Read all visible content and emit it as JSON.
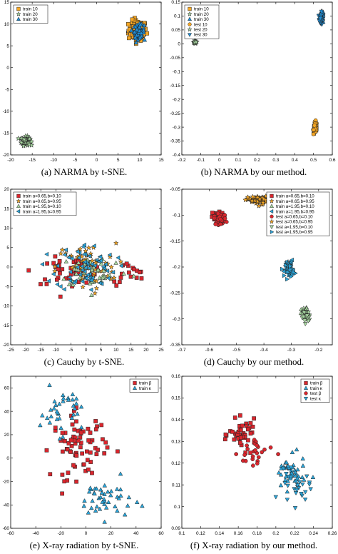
{
  "colors": {
    "orange": "#f5a623",
    "blue": "#1f8fd8",
    "green": "#a7d6a0",
    "red": "#d9262d",
    "cyan": "#2aa4d9",
    "dark": "#111111"
  },
  "chart_data": [
    {
      "type": "scatter",
      "caption": "(a) NARMA by t-SNE.",
      "xlim": [
        -20,
        15
      ],
      "ylim": [
        -20,
        15
      ],
      "xticks": [
        -20,
        -15,
        -10,
        -5,
        0,
        5,
        10,
        15
      ],
      "yticks": [
        -20,
        -15,
        -10,
        -5,
        0,
        5,
        10,
        15
      ],
      "xticklabels": [
        "-20",
        "-15",
        "-10",
        "-5",
        "0",
        "5",
        "10",
        "15"
      ],
      "yticklabels": [
        "-20",
        "-15",
        "-10",
        "-5",
        "0",
        "5",
        "10",
        "15"
      ],
      "legend": {
        "position": "top-left",
        "entries": [
          {
            "label": "train 10",
            "marker": "square",
            "color": "orange"
          },
          {
            "label": "train 20",
            "marker": "star",
            "color": "green"
          },
          {
            "label": "train 30",
            "marker": "triangle-up",
            "color": "blue"
          }
        ]
      },
      "series": [
        {
          "name": "train 10",
          "marker": "square",
          "color": "orange",
          "clusters": [
            {
              "cx": 9.5,
              "cy": 8.5,
              "sx": 1.9,
              "sy": 2.1,
              "n": 110
            }
          ]
        },
        {
          "name": "train 20",
          "marker": "star",
          "color": "green",
          "clusters": [
            {
              "cx": -16.5,
              "cy": -16.8,
              "sx": 0.9,
              "sy": 0.9,
              "n": 120
            }
          ]
        },
        {
          "name": "train 30",
          "marker": "triangle-up",
          "color": "blue",
          "clusters": [
            {
              "cx": 9.8,
              "cy": 8.3,
              "sx": 1.1,
              "sy": 1.4,
              "n": 90
            }
          ]
        }
      ]
    },
    {
      "type": "scatter",
      "caption": "(b) NARMA by our method.",
      "xlim": [
        -0.2,
        0.6
      ],
      "ylim": [
        -0.4,
        0.15
      ],
      "xticks": [
        -0.2,
        -0.1,
        0,
        0.1,
        0.2,
        0.3,
        0.4,
        0.5,
        0.6
      ],
      "yticks": [
        -0.4,
        -0.35,
        -0.3,
        -0.25,
        -0.2,
        -0.15,
        -0.1,
        -0.05,
        0,
        0.05,
        0.1,
        0.15
      ],
      "xticklabels": [
        "-0.2",
        "-0.1",
        "0",
        "0.1",
        "0.2",
        "0.3",
        "0.4",
        "0.5",
        "0.6"
      ],
      "yticklabels": [
        "-0.4",
        "-0.35",
        "-0.3",
        "-0.25",
        "-0.2",
        "-0.15",
        "-0.1",
        "-0.05",
        "0",
        "0.05",
        "0.1",
        "0.15"
      ],
      "legend": {
        "position": "top-left",
        "entries": [
          {
            "label": "train 10",
            "marker": "square",
            "color": "orange"
          },
          {
            "label": "train 20",
            "marker": "star",
            "color": "green"
          },
          {
            "label": "train 30",
            "marker": "triangle-up",
            "color": "blue"
          },
          {
            "label": "test 10",
            "marker": "circle",
            "color": "orange"
          },
          {
            "label": "test 20",
            "marker": "star",
            "color": "green"
          },
          {
            "label": "test 30",
            "marker": "triangle-down",
            "color": "blue"
          }
        ]
      },
      "series": [
        {
          "name": "train 10",
          "marker": "square",
          "color": "orange",
          "clusters": [
            {
              "cx": 0.51,
              "cy": -0.305,
              "sx": 0.008,
              "sy": 0.018,
              "n": 35
            }
          ]
        },
        {
          "name": "train 20",
          "marker": "star",
          "color": "green",
          "clusters": [
            {
              "cx": -0.13,
              "cy": 0.005,
              "sx": 0.006,
              "sy": 0.004,
              "n": 25
            }
          ]
        },
        {
          "name": "train 30",
          "marker": "triangle-up",
          "color": "blue",
          "clusters": [
            {
              "cx": 0.545,
              "cy": 0.095,
              "sx": 0.008,
              "sy": 0.02,
              "n": 35
            }
          ]
        },
        {
          "name": "test 10",
          "marker": "circle",
          "color": "orange",
          "clusters": [
            {
              "cx": 0.51,
              "cy": -0.3,
              "sx": 0.008,
              "sy": 0.018,
              "n": 30
            }
          ]
        },
        {
          "name": "test 20",
          "marker": "star",
          "color": "green",
          "clusters": [
            {
              "cx": -0.128,
              "cy": 0.006,
              "sx": 0.006,
              "sy": 0.004,
              "n": 20
            }
          ]
        },
        {
          "name": "test 30",
          "marker": "triangle-down",
          "color": "blue",
          "clusters": [
            {
              "cx": 0.54,
              "cy": 0.09,
              "sx": 0.008,
              "sy": 0.02,
              "n": 30
            }
          ]
        }
      ]
    },
    {
      "type": "scatter",
      "caption": "(c) Cauchy by t-SNE.",
      "xlim": [
        -25,
        25
      ],
      "ylim": [
        -20,
        20
      ],
      "xticks": [
        -25,
        -20,
        -15,
        -10,
        -5,
        0,
        5,
        10,
        15,
        20,
        25
      ],
      "yticks": [
        -20,
        -15,
        -10,
        -5,
        0,
        5,
        10,
        15,
        20
      ],
      "xticklabels": [
        "-25",
        "-20",
        "-15",
        "-10",
        "-5",
        "0",
        "5",
        "10",
        "15",
        "20",
        "25"
      ],
      "yticklabels": [
        "-20",
        "-15",
        "-10",
        "-5",
        "0",
        "5",
        "10",
        "15",
        "20"
      ],
      "legend": {
        "position": "top-left",
        "entries": [
          {
            "label": "train a=0.65,b=0.10",
            "marker": "square",
            "color": "red"
          },
          {
            "label": "train a=0.65,b=0.95",
            "marker": "star",
            "color": "orange"
          },
          {
            "label": "train a=1.95,b=0.10",
            "marker": "triangle-up",
            "color": "green"
          },
          {
            "label": "train a=1.95,b=0.95",
            "marker": "triangle-left",
            "color": "cyan"
          }
        ]
      },
      "series": [
        {
          "name": "train a=0.65,b=0.10",
          "marker": "square",
          "color": "red",
          "clusters": [
            {
              "cx": -5,
              "cy": -1,
              "sx": 11,
              "sy": 3,
              "n": 45
            },
            {
              "cx": 14,
              "cy": -2,
              "sx": 6,
              "sy": 3,
              "n": 15
            }
          ]
        },
        {
          "name": "train a=0.65,b=0.95",
          "marker": "star",
          "color": "orange",
          "clusters": [
            {
              "cx": 0,
              "cy": 0,
              "sx": 9,
              "sy": 5.5,
              "n": 70
            }
          ]
        },
        {
          "name": "train a=1.95,b=0.10",
          "marker": "triangle-up",
          "color": "green",
          "clusters": [
            {
              "cx": 3,
              "cy": -1,
              "sx": 11,
              "sy": 4,
              "n": 45
            }
          ]
        },
        {
          "name": "train a=1.95,b=0.95",
          "marker": "triangle-left",
          "color": "cyan",
          "clusters": [
            {
              "cx": 0,
              "cy": 0,
              "sx": 9,
              "sy": 5.5,
              "n": 70
            }
          ]
        }
      ]
    },
    {
      "type": "scatter",
      "caption": "(d) Cauchy by our method.",
      "xlim": [
        -0.7,
        -0.15
      ],
      "ylim": [
        -0.35,
        -0.05
      ],
      "xticks": [
        -0.7,
        -0.6,
        -0.5,
        -0.4,
        -0.3,
        -0.2
      ],
      "yticks": [
        -0.35,
        -0.3,
        -0.25,
        -0.2,
        -0.15,
        -0.1,
        -0.05
      ],
      "xticklabels": [
        "-0.7",
        "-0.6",
        "-0.5",
        "-0.4",
        "-0.3",
        "-0.2"
      ],
      "yticklabels": [
        "-0.35",
        "-0.3",
        "-0.25",
        "-0.2",
        "-0.15",
        "-0.1",
        "-0.05"
      ],
      "legend": {
        "position": "top-right",
        "entries": [
          {
            "label": "train a=0.65,b=0.10",
            "marker": "square",
            "color": "red"
          },
          {
            "label": "train a=0.65,b=0.95",
            "marker": "star",
            "color": "orange"
          },
          {
            "label": "train a=1.95,b=0.10",
            "marker": "triangle-up",
            "color": "green"
          },
          {
            "label": "train a=1.95,b=0.95",
            "marker": "triangle-left",
            "color": "cyan"
          },
          {
            "label": "test a=0.65,b=0.10",
            "marker": "circle",
            "color": "red"
          },
          {
            "label": "test a=0.65,b=0.95",
            "marker": "star",
            "color": "orange"
          },
          {
            "label": "test a=1.95,b=0.10",
            "marker": "triangle-down",
            "color": "green"
          },
          {
            "label": "test a=1.95,b=0.95",
            "marker": "triangle-right",
            "color": "cyan"
          }
        ]
      },
      "series": [
        {
          "name": "train a=0.65,b=0.10",
          "marker": "square",
          "color": "red",
          "clusters": [
            {
              "cx": -0.57,
              "cy": -0.105,
              "sx": 0.02,
              "sy": 0.009,
              "n": 55
            }
          ]
        },
        {
          "name": "train a=0.65,b=0.95",
          "marker": "star",
          "color": "orange",
          "clusters": [
            {
              "cx": -0.42,
              "cy": -0.07,
              "sx": 0.035,
              "sy": 0.006,
              "n": 50
            }
          ]
        },
        {
          "name": "train a=1.95,b=0.10",
          "marker": "triangle-up",
          "color": "green",
          "clusters": [
            {
              "cx": -0.25,
              "cy": -0.29,
              "sx": 0.012,
              "sy": 0.01,
              "n": 40
            }
          ]
        },
        {
          "name": "train a=1.95,b=0.95",
          "marker": "triangle-left",
          "color": "cyan",
          "clusters": [
            {
              "cx": -0.31,
              "cy": -0.2,
              "sx": 0.014,
              "sy": 0.012,
              "n": 45
            }
          ]
        },
        {
          "name": "test a=0.65,b=0.10",
          "marker": "circle",
          "color": "red",
          "clusters": [
            {
              "cx": -0.56,
              "cy": -0.108,
              "sx": 0.02,
              "sy": 0.009,
              "n": 45
            }
          ]
        },
        {
          "name": "test a=0.65,b=0.95",
          "marker": "star",
          "color": "orange",
          "clusters": [
            {
              "cx": -0.41,
              "cy": -0.072,
              "sx": 0.035,
              "sy": 0.006,
              "n": 40
            }
          ]
        },
        {
          "name": "test a=1.95,b=0.10",
          "marker": "triangle-down",
          "color": "green",
          "clusters": [
            {
              "cx": -0.245,
              "cy": -0.295,
              "sx": 0.012,
              "sy": 0.01,
              "n": 35
            }
          ]
        },
        {
          "name": "test a=1.95,b=0.95",
          "marker": "triangle-right",
          "color": "cyan",
          "clusters": [
            {
              "cx": -0.305,
              "cy": -0.205,
              "sx": 0.014,
              "sy": 0.012,
              "n": 40
            }
          ]
        }
      ]
    },
    {
      "type": "scatter",
      "caption": "(e) X-ray radiation by t-SNE.",
      "xlim": [
        -60,
        60
      ],
      "ylim": [
        -60,
        70
      ],
      "xticks": [
        -60,
        -40,
        -20,
        0,
        20,
        40,
        60
      ],
      "yticks": [
        -60,
        -40,
        -20,
        0,
        20,
        40,
        60
      ],
      "xticklabels": [
        "-60",
        "-40",
        "-20",
        "0",
        "20",
        "40",
        "60"
      ],
      "yticklabels": [
        "-60",
        "-40",
        "-20",
        "0",
        "20",
        "40",
        "60"
      ],
      "legend": {
        "position": "top-right",
        "entries": [
          {
            "label": "train β",
            "marker": "square",
            "color": "red"
          },
          {
            "label": "train κ",
            "marker": "triangle-up",
            "color": "cyan"
          }
        ]
      },
      "series": [
        {
          "name": "train β",
          "marker": "square",
          "color": "red",
          "clusters": [
            {
              "cx": -5,
              "cy": 10,
              "sx": 20,
              "sy": 25,
              "n": 75
            }
          ]
        },
        {
          "name": "train κ",
          "marker": "triangle-up",
          "color": "cyan",
          "clusters": [
            {
              "cx": -20,
              "cy": 40,
              "sx": 15,
              "sy": 18,
              "n": 35
            },
            {
              "cx": 15,
              "cy": -35,
              "sx": 20,
              "sy": 15,
              "n": 45
            }
          ]
        }
      ]
    },
    {
      "type": "scatter",
      "caption": "(f) X-ray radiation by our method.",
      "xlim": [
        0.1,
        0.26
      ],
      "ylim": [
        0.09,
        0.16
      ],
      "xticks": [
        0.1,
        0.12,
        0.14,
        0.16,
        0.18,
        0.2,
        0.22,
        0.24,
        0.26
      ],
      "yticks": [
        0.09,
        0.1,
        0.11,
        0.12,
        0.13,
        0.14,
        0.15,
        0.16
      ],
      "xticklabels": [
        "0.1",
        "0.12",
        "0.14",
        "0.16",
        "0.18",
        "0.2",
        "0.22",
        "0.24",
        "0.26"
      ],
      "yticklabels": [
        "0.09",
        "0.1",
        "0.11",
        "0.12",
        "0.13",
        "0.14",
        "0.15",
        "0.16"
      ],
      "legend": {
        "position": "top-right",
        "entries": [
          {
            "label": "train β",
            "marker": "square",
            "color": "red"
          },
          {
            "label": "train κ",
            "marker": "triangle-up",
            "color": "cyan"
          },
          {
            "label": "test β",
            "marker": "circle",
            "color": "red"
          },
          {
            "label": "test κ",
            "marker": "triangle-down",
            "color": "cyan"
          }
        ]
      },
      "series": [
        {
          "name": "train β",
          "marker": "square",
          "color": "red",
          "clusters": [
            {
              "cx": 0.165,
              "cy": 0.133,
              "sx": 0.013,
              "sy": 0.006,
              "n": 45
            }
          ]
        },
        {
          "name": "train κ",
          "marker": "triangle-up",
          "color": "cyan",
          "clusters": [
            {
              "cx": 0.215,
              "cy": 0.115,
              "sx": 0.015,
              "sy": 0.007,
              "n": 45
            }
          ]
        },
        {
          "name": "test β",
          "marker": "circle",
          "color": "red",
          "clusters": [
            {
              "cx": 0.18,
              "cy": 0.125,
              "sx": 0.018,
              "sy": 0.008,
              "n": 25
            }
          ]
        },
        {
          "name": "test κ",
          "marker": "triangle-down",
          "color": "cyan",
          "clusters": [
            {
              "cx": 0.22,
              "cy": 0.108,
              "sx": 0.015,
              "sy": 0.007,
              "n": 25
            }
          ]
        }
      ]
    }
  ]
}
